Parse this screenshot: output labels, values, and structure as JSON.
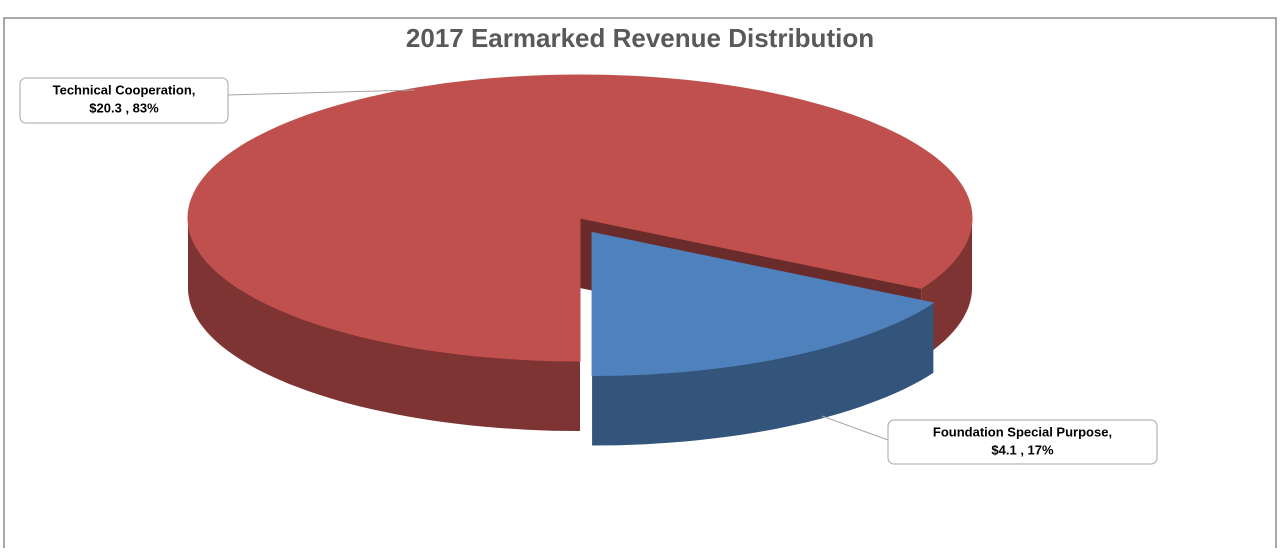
{
  "chart_data": {
    "type": "pie",
    "title": "2017 Earmarked Revenue Distribution",
    "categories": [
      "Technical Cooperation,",
      "Foundation Special Purpose,"
    ],
    "values": [
      20.3,
      4.1
    ],
    "value_labels": [
      "$20.3 , 83%",
      "$4.1 , 17%"
    ],
    "colors": [
      "#c0504d",
      "#4f81bd"
    ],
    "style": "3d",
    "exploded": [
      false,
      true
    ],
    "legend": false
  }
}
